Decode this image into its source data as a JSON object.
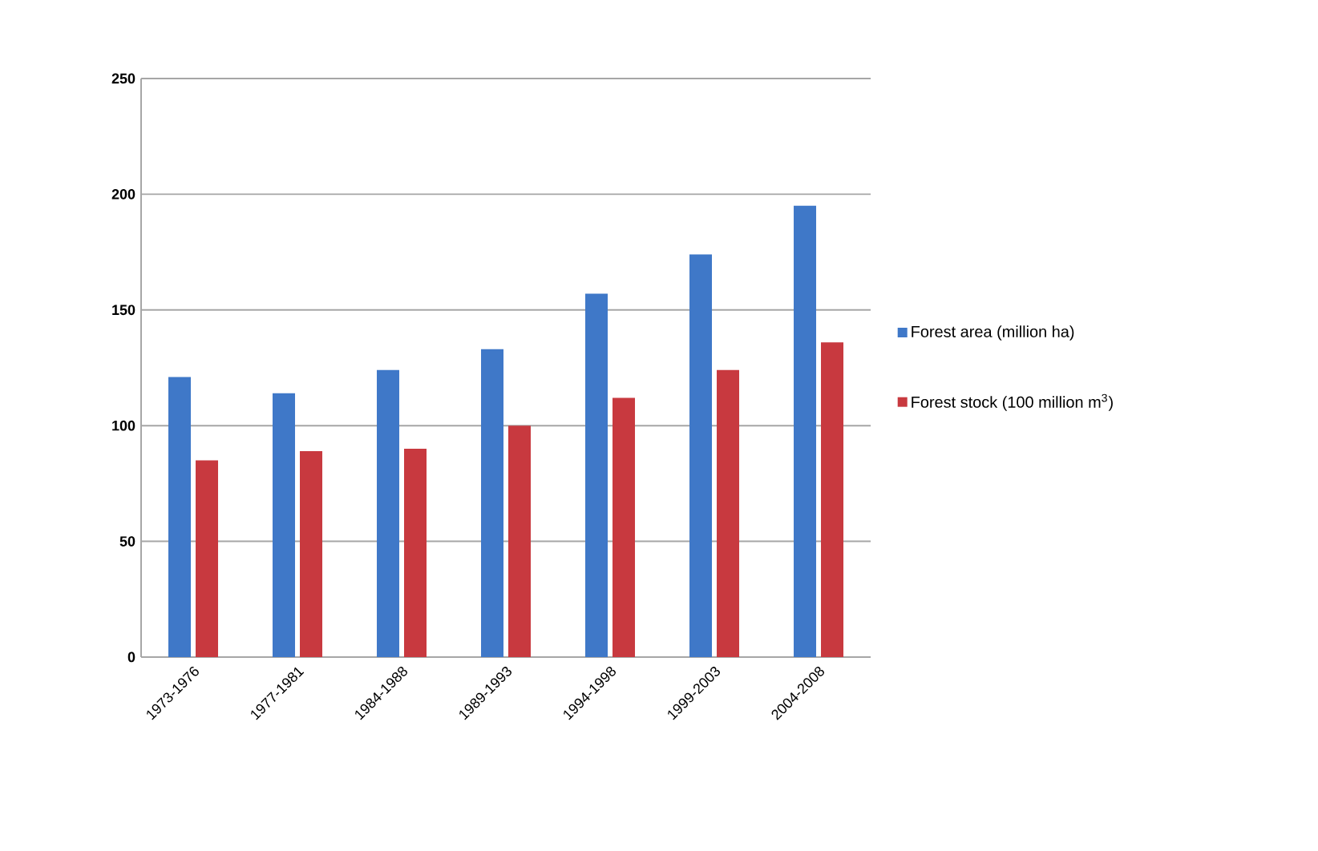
{
  "chart_data": {
    "type": "bar",
    "categories": [
      "1973-1976",
      "1977-1981",
      "1984-1988",
      "1989-1993",
      "1994-1998",
      "1999-2003",
      "2004-2008"
    ],
    "series": [
      {
        "name": "Forest area (million ha)",
        "color": "#3f78c8",
        "values": [
          121,
          114,
          124,
          133,
          157,
          174,
          195
        ]
      },
      {
        "name": "Forest stock (100 million m$^{3}$)",
        "color": "#c8393f",
        "values": [
          85,
          89,
          90,
          100,
          112,
          124,
          136
        ]
      }
    ],
    "ylim": [
      0,
      250
    ],
    "yticks": [
      0,
      50,
      100,
      150,
      200,
      250
    ],
    "grid": "y",
    "legend": "right"
  }
}
